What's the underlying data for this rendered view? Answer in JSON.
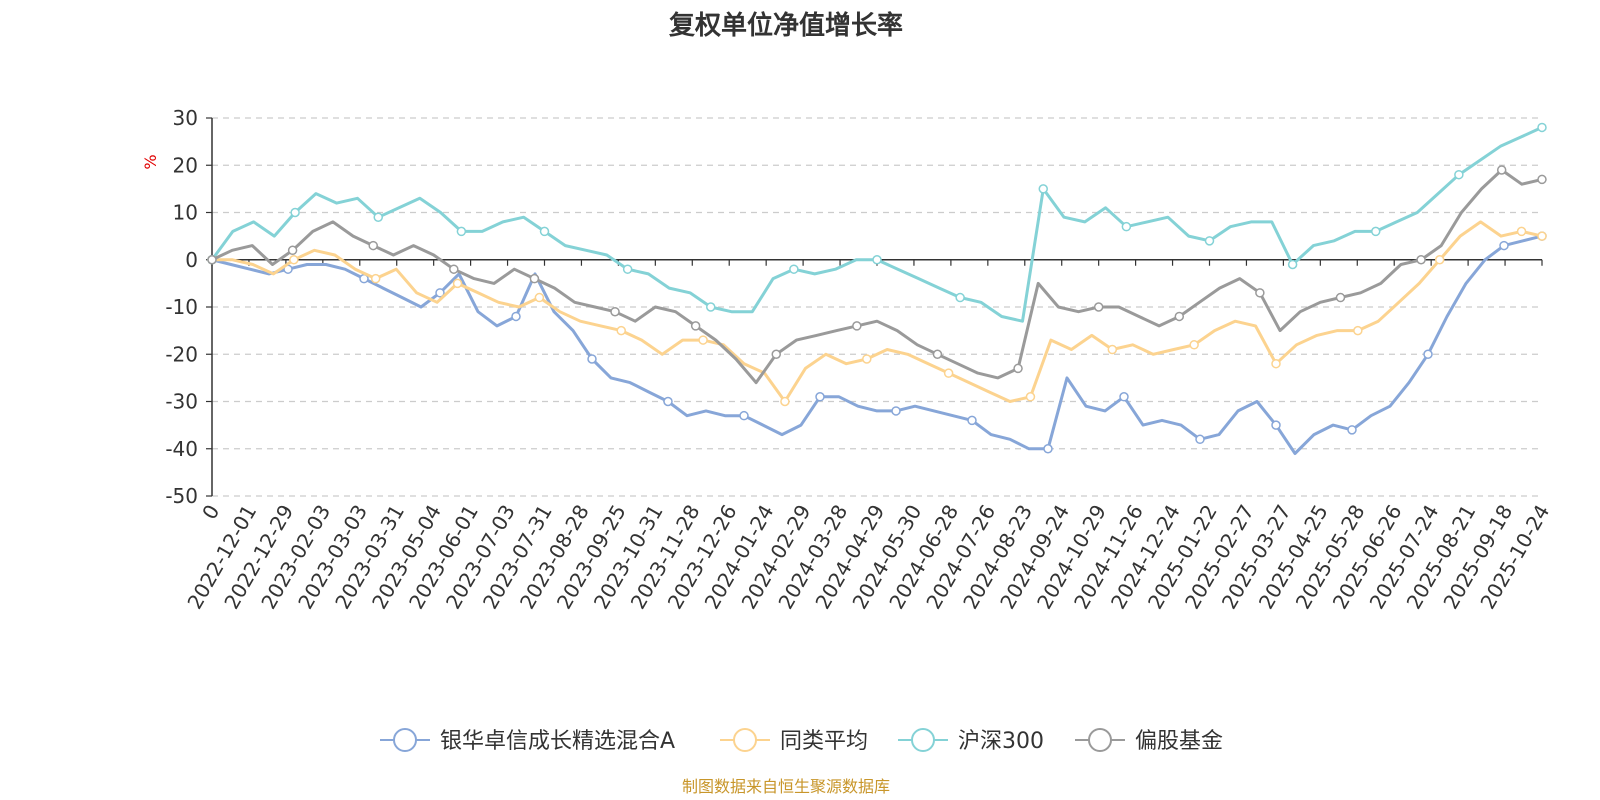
{
  "chart_data": {
    "type": "line",
    "title": "复权单位净值增长率",
    "ylabel": "%",
    "ylim": [
      -50,
      30
    ],
    "yticks": [
      30,
      20,
      10,
      0,
      -10,
      -20,
      -30,
      -40,
      -50
    ],
    "x_tick_labels": [
      "0",
      "2022-12-01",
      "2022-12-29",
      "2023-02-03",
      "2023-03-03",
      "2023-03-31",
      "2023-05-04",
      "2023-06-01",
      "2023-07-03",
      "2023-07-31",
      "2023-08-28",
      "2023-09-25",
      "2023-10-31",
      "2023-11-28",
      "2023-12-26",
      "2024-01-24",
      "2024-02-29",
      "2024-03-28",
      "2024-04-29",
      "2024-05-30",
      "2024-06-28",
      "2024-07-26",
      "2024-08-23",
      "2024-09-24",
      "2024-10-29",
      "2024-11-26",
      "2024-12-24",
      "2025-01-22",
      "2025-02-27",
      "2025-03-27",
      "2025-04-25",
      "2025-05-28",
      "2025-06-26",
      "2025-07-24",
      "2025-08-21",
      "2025-09-18",
      "2025-10-24"
    ],
    "legend_position": "bottom",
    "series": [
      {
        "name": "银华卓信成长精选混合A",
        "color": "#87a6d8",
        "values": [
          0,
          -1,
          -2,
          -3,
          -2,
          -1,
          -1,
          -2,
          -4,
          -6,
          -8,
          -10,
          -7,
          -3,
          -11,
          -14,
          -12,
          -3,
          -11,
          -15,
          -21,
          -25,
          -26,
          -28,
          -30,
          -33,
          -32,
          -33,
          -33,
          -35,
          -37,
          -35,
          -29,
          -29,
          -31,
          -32,
          -32,
          -31,
          -32,
          -33,
          -34,
          -37,
          -38,
          -40,
          -40,
          -25,
          -31,
          -32,
          -29,
          -35,
          -34,
          -35,
          -38,
          -37,
          -32,
          -30,
          -35,
          -41,
          -37,
          -35,
          -36,
          -33,
          -31,
          -26,
          -20,
          -12,
          -5,
          0,
          3,
          4,
          5
        ]
      },
      {
        "name": "同类平均",
        "color": "#fcd38f",
        "values": [
          0,
          0,
          -1,
          -3,
          0,
          2,
          1,
          -2,
          -4,
          -2,
          -7,
          -9,
          -5,
          -7,
          -9,
          -10,
          -8,
          -11,
          -13,
          -14,
          -15,
          -17,
          -20,
          -17,
          -17,
          -18,
          -22,
          -24,
          -30,
          -23,
          -20,
          -22,
          -21,
          -19,
          -20,
          -22,
          -24,
          -26,
          -28,
          -30,
          -29,
          -17,
          -19,
          -16,
          -19,
          -18,
          -20,
          -19,
          -18,
          -15,
          -13,
          -14,
          -22,
          -18,
          -16,
          -15,
          -15,
          -13,
          -9,
          -5,
          0,
          5,
          8,
          5,
          6,
          5
        ]
      },
      {
        "name": "沪深300",
        "color": "#84d2d6",
        "values": [
          0,
          6,
          8,
          5,
          10,
          14,
          12,
          13,
          9,
          11,
          13,
          10,
          6,
          6,
          8,
          9,
          6,
          3,
          2,
          1,
          -2,
          -3,
          -6,
          -7,
          -10,
          -11,
          -11,
          -4,
          -2,
          -3,
          -2,
          0,
          0,
          -2,
          -4,
          -6,
          -8,
          -9,
          -12,
          -13,
          15,
          9,
          8,
          11,
          7,
          8,
          9,
          5,
          4,
          7,
          8,
          8,
          -1,
          3,
          4,
          6,
          6,
          8,
          10,
          14,
          18,
          21,
          24,
          26,
          28
        ]
      },
      {
        "name": "偏股基金",
        "color": "#9a9a9a",
        "values": [
          0,
          2,
          3,
          -1,
          2,
          6,
          8,
          5,
          3,
          1,
          3,
          1,
          -2,
          -4,
          -5,
          -2,
          -4,
          -6,
          -9,
          -10,
          -11,
          -13,
          -10,
          -11,
          -14,
          -17,
          -21,
          -26,
          -20,
          -17,
          -16,
          -15,
          -14,
          -13,
          -15,
          -18,
          -20,
          -22,
          -24,
          -25,
          -23,
          -5,
          -10,
          -11,
          -10,
          -10,
          -12,
          -14,
          -12,
          -9,
          -6,
          -4,
          -7,
          -15,
          -11,
          -9,
          -8,
          -7,
          -5,
          -1,
          0,
          3,
          10,
          15,
          19,
          16,
          17
        ]
      }
    ]
  },
  "source_text": "制图数据来自恒生聚源数据库"
}
